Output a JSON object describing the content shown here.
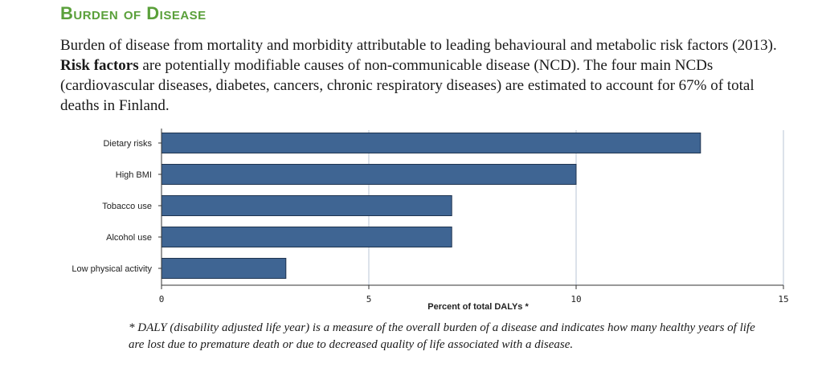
{
  "heading": "Burden of Disease",
  "intro": {
    "p1": "Burden of disease from mortality and morbidity attributable to leading behavioural and metabolic risk factors (2013). ",
    "bold": "Risk factors",
    "p2": " are potentially modifiable causes of non-communicable disease (NCD). The four main NCDs (cardiovascular diseases, diabetes, cancers, chronic respiratory diseases) are estimated to account for 67% of total deaths in Finland."
  },
  "footnote": "* DALY (disability adjusted life year) is a measure of the overall burden of a disease and indicates how many healthy years of life are lost due to premature death or due to decreased quality of life associated with a disease.",
  "colors": {
    "bar": "#3f6593",
    "bar_edge": "#1f3450",
    "heading": "#5aa03a",
    "grid": "#b8c4d6"
  },
  "chart_data": {
    "type": "bar",
    "orientation": "horizontal",
    "categories": [
      "Dietary risks",
      "High BMI",
      "Tobacco use",
      "Alcohol use",
      "Low physical activity"
    ],
    "values": [
      13,
      10,
      7,
      7,
      3
    ],
    "xlabel": "Percent of total DALYs *",
    "ylabel": "",
    "xlim": [
      0,
      15
    ],
    "xticks": [
      "0",
      "5",
      "10",
      "15"
    ],
    "grid": true
  }
}
